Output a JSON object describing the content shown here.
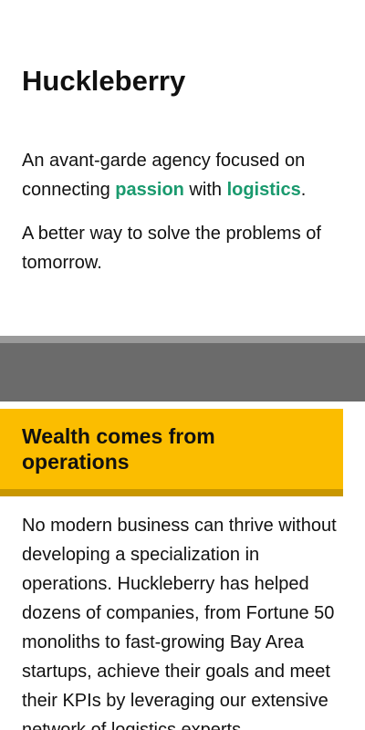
{
  "hero": {
    "brand": "Huckleberry",
    "intro_prefix": "An avant-garde agency focused on connecting ",
    "intro_highlight_1": "passion",
    "intro_middle": " with ",
    "intro_highlight_2": "logistics",
    "intro_suffix": ".",
    "tagline": "A better way to solve the problems of tomorrow."
  },
  "section": {
    "heading": "Wealth comes from operations",
    "body": "No modern business can thrive without developing a specialization in operations. Huckleberry has helped dozens of companies, from Fortune 50 monoliths to fast-growing Bay Area startups, achieve their goals and meet their KPIs by leveraging our extensive network of logistics experts."
  },
  "colors": {
    "accent_green": "#1a9a6e",
    "callout_yellow": "#fbbd00",
    "band_gray": "#6b6b6b"
  }
}
